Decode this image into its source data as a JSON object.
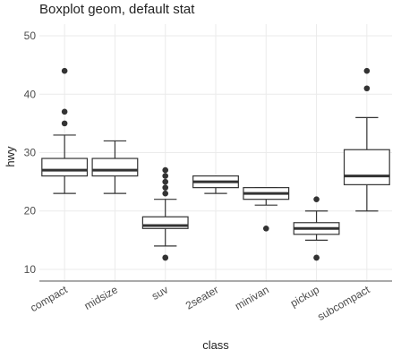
{
  "chart_data": {
    "type": "boxplot",
    "title": "Boxplot geom, default stat",
    "xlabel": "class",
    "ylabel": "hwy",
    "ylim": [
      8,
      52
    ],
    "yticks": [
      10,
      20,
      30,
      40,
      50
    ],
    "grid": true,
    "categories": [
      "compact",
      "midsize",
      "suv",
      "2seater",
      "minivan",
      "pickup",
      "subcompact"
    ],
    "boxes": [
      {
        "category": "compact",
        "whisker_low": 23,
        "q1": 26,
        "median": 27,
        "q3": 29,
        "whisker_high": 33,
        "outliers": [
          35,
          37,
          44
        ]
      },
      {
        "category": "midsize",
        "whisker_low": 23,
        "q1": 26,
        "median": 27,
        "q3": 29,
        "whisker_high": 32,
        "outliers": []
      },
      {
        "category": "suv",
        "whisker_low": 14,
        "q1": 17,
        "median": 17.5,
        "q3": 19,
        "whisker_high": 22,
        "outliers": [
          12,
          12,
          23,
          24,
          25,
          26,
          27
        ]
      },
      {
        "category": "2seater",
        "whisker_low": 23,
        "q1": 24,
        "median": 25,
        "q3": 26,
        "whisker_high": 26,
        "outliers": []
      },
      {
        "category": "minivan",
        "whisker_low": 21,
        "q1": 22,
        "median": 23,
        "q3": 24,
        "whisker_high": 24,
        "outliers": [
          17
        ]
      },
      {
        "category": "pickup",
        "whisker_low": 15,
        "q1": 16,
        "median": 17,
        "q3": 18,
        "whisker_high": 20,
        "outliers": [
          12,
          12,
          22
        ]
      },
      {
        "category": "subcompact",
        "whisker_low": 20,
        "q1": 24.5,
        "median": 26,
        "q3": 30.5,
        "whisker_high": 36,
        "outliers": [
          41,
          44
        ]
      }
    ]
  }
}
